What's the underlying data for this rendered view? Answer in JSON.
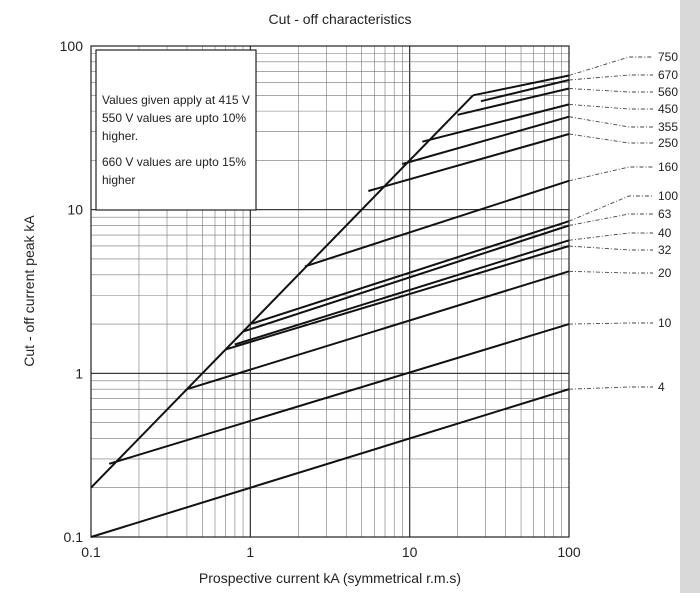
{
  "chart_data": {
    "type": "line",
    "title": "Cut - off characteristics",
    "xlabel": "Prospective current kA (symmetrical r.m.s)",
    "ylabel": "Cut - off current peak kA",
    "x_scale": "log",
    "y_scale": "log",
    "xlim": [
      0.1,
      100
    ],
    "ylim": [
      0.1,
      100
    ],
    "x_ticks": [
      {
        "value": 0.1,
        "label": "0.1"
      },
      {
        "value": 1,
        "label": "1"
      },
      {
        "value": 10,
        "label": "10"
      },
      {
        "value": 100,
        "label": "100"
      }
    ],
    "y_ticks": [
      {
        "value": 0.1,
        "label": "0.1"
      },
      {
        "value": 1,
        "label": "1"
      },
      {
        "value": 10,
        "label": "10"
      },
      {
        "value": 100,
        "label": "100"
      }
    ],
    "grid": true,
    "note": [
      "Values given apply at 415 V",
      "550 V values are upto 10%",
      "higher.",
      "660 V values are upto 15%",
      "higher"
    ],
    "envelope": {
      "x": [
        0.1,
        25
      ],
      "y": [
        0.2,
        50
      ]
    },
    "series": [
      {
        "name": "750",
        "x": [
          25,
          100
        ],
        "y": [
          50,
          66
        ]
      },
      {
        "name": "670",
        "x": [
          28,
          100
        ],
        "y": [
          46,
          62
        ]
      },
      {
        "name": "560",
        "x": [
          20,
          100
        ],
        "y": [
          38,
          55
        ]
      },
      {
        "name": "450",
        "x": [
          12,
          100
        ],
        "y": [
          26,
          44
        ]
      },
      {
        "name": "355",
        "x": [
          9,
          100
        ],
        "y": [
          19,
          37
        ]
      },
      {
        "name": "250",
        "x": [
          5.5,
          100
        ],
        "y": [
          13,
          29
        ]
      },
      {
        "name": "160",
        "x": [
          2.2,
          100
        ],
        "y": [
          4.5,
          15
        ]
      },
      {
        "name": "100",
        "x": [
          1,
          100
        ],
        "y": [
          2,
          8.5
        ]
      },
      {
        "name": "63",
        "x": [
          0.9,
          100
        ],
        "y": [
          1.8,
          8
        ]
      },
      {
        "name": "40",
        "x": [
          0.8,
          100
        ],
        "y": [
          1.5,
          6.5
        ]
      },
      {
        "name": "32",
        "x": [
          0.7,
          100
        ],
        "y": [
          1.4,
          6
        ]
      },
      {
        "name": "20",
        "x": [
          0.4,
          100
        ],
        "y": [
          0.8,
          4.2
        ]
      },
      {
        "name": "10",
        "x": [
          0.13,
          100
        ],
        "y": [
          0.28,
          2
        ]
      },
      {
        "name": "4",
        "x": [
          0.1,
          100
        ],
        "y": [
          0.1,
          0.8
        ]
      }
    ],
    "series_labels": [
      "750",
      "670",
      "560",
      "450",
      "355",
      "250",
      "160",
      "100",
      "63",
      "40",
      "32",
      "20",
      "10",
      "4"
    ]
  }
}
